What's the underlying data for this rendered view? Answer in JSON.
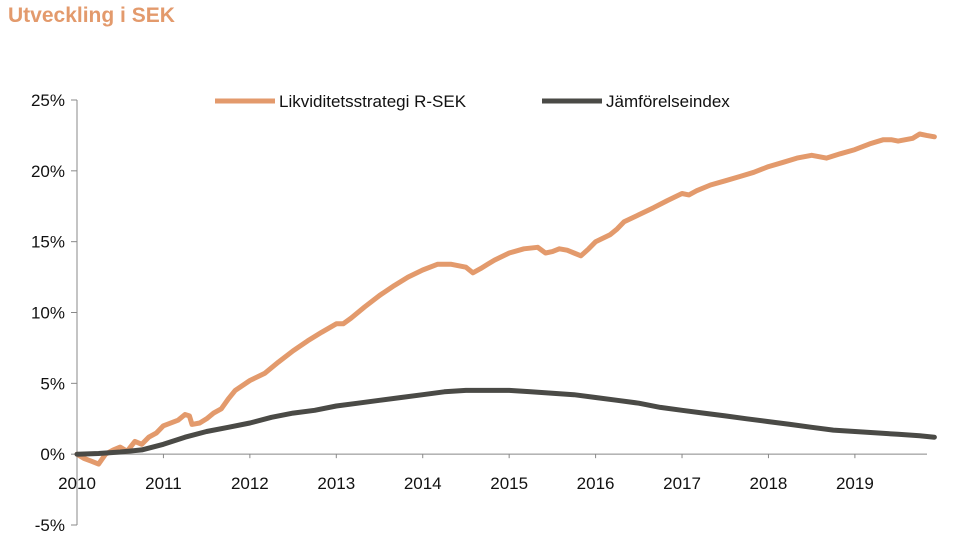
{
  "chart_data": {
    "type": "line",
    "title": "Utveckling i SEK",
    "xlabel": "",
    "ylabel": "",
    "ylim": [
      -5,
      25
    ],
    "xlim": [
      2010,
      2019.95
    ],
    "legend_position": "top-center",
    "grid": false,
    "y_ticks": [
      "-5%",
      "0%",
      "5%",
      "10%",
      "15%",
      "20%",
      "25%"
    ],
    "x_ticks": [
      "2010",
      "2011",
      "2012",
      "2013",
      "2014",
      "2015",
      "2016",
      "2017",
      "2018",
      "2019"
    ],
    "series": [
      {
        "name": "Likviditetsstrategi R-SEK",
        "color": "#E39A6C",
        "x": [
          2010.0,
          2010.08,
          2010.17,
          2010.25,
          2010.33,
          2010.42,
          2010.5,
          2010.58,
          2010.67,
          2010.75,
          2010.83,
          2010.92,
          2011.0,
          2011.17,
          2011.25,
          2011.3,
          2011.33,
          2011.42,
          2011.5,
          2011.58,
          2011.67,
          2011.75,
          2011.83,
          2012.0,
          2012.17,
          2012.33,
          2012.5,
          2012.67,
          2012.83,
          2013.0,
          2013.08,
          2013.17,
          2013.33,
          2013.5,
          2013.67,
          2013.83,
          2014.0,
          2014.17,
          2014.33,
          2014.5,
          2014.58,
          2014.67,
          2014.75,
          2014.83,
          2015.0,
          2015.17,
          2015.33,
          2015.42,
          2015.5,
          2015.58,
          2015.67,
          2015.75,
          2015.83,
          2015.92,
          2016.0,
          2016.17,
          2016.25,
          2016.33,
          2016.5,
          2016.67,
          2016.83,
          2017.0,
          2017.08,
          2017.17,
          2017.33,
          2017.5,
          2017.67,
          2017.83,
          2018.0,
          2018.17,
          2018.33,
          2018.5,
          2018.67,
          2018.83,
          2019.0,
          2019.17,
          2019.33,
          2019.42,
          2019.5,
          2019.67,
          2019.75,
          2019.83,
          2019.92
        ],
        "values": [
          0.0,
          -0.3,
          -0.5,
          -0.7,
          0.0,
          0.3,
          0.5,
          0.2,
          0.9,
          0.7,
          1.2,
          1.5,
          2.0,
          2.4,
          2.8,
          2.7,
          2.1,
          2.2,
          2.5,
          2.9,
          3.2,
          3.9,
          4.5,
          5.2,
          5.7,
          6.5,
          7.3,
          8.0,
          8.6,
          9.2,
          9.2,
          9.6,
          10.4,
          11.2,
          11.9,
          12.5,
          13.0,
          13.4,
          13.4,
          13.2,
          12.8,
          13.1,
          13.4,
          13.7,
          14.2,
          14.5,
          14.6,
          14.2,
          14.3,
          14.5,
          14.4,
          14.2,
          14.0,
          14.5,
          15.0,
          15.5,
          15.9,
          16.4,
          16.9,
          17.4,
          17.9,
          18.4,
          18.3,
          18.6,
          19.0,
          19.3,
          19.6,
          19.9,
          20.3,
          20.6,
          20.9,
          21.1,
          20.9,
          21.2,
          21.5,
          21.9,
          22.2,
          22.2,
          22.1,
          22.3,
          22.6,
          22.5,
          22.4
        ]
      },
      {
        "name": "Jämförelseindex",
        "color": "#4A4A46",
        "x": [
          2010.0,
          2010.25,
          2010.5,
          2010.75,
          2011.0,
          2011.25,
          2011.5,
          2011.75,
          2012.0,
          2012.25,
          2012.5,
          2012.75,
          2013.0,
          2013.25,
          2013.5,
          2013.75,
          2014.0,
          2014.25,
          2014.5,
          2014.75,
          2015.0,
          2015.25,
          2015.5,
          2015.75,
          2016.0,
          2016.25,
          2016.5,
          2016.75,
          2017.0,
          2017.25,
          2017.5,
          2017.75,
          2018.0,
          2018.25,
          2018.5,
          2018.75,
          2019.0,
          2019.25,
          2019.5,
          2019.75,
          2019.92
        ],
        "values": [
          0.0,
          0.05,
          0.15,
          0.3,
          0.7,
          1.2,
          1.6,
          1.9,
          2.2,
          2.6,
          2.9,
          3.1,
          3.4,
          3.6,
          3.8,
          4.0,
          4.2,
          4.4,
          4.5,
          4.5,
          4.5,
          4.4,
          4.3,
          4.2,
          4.0,
          3.8,
          3.6,
          3.3,
          3.1,
          2.9,
          2.7,
          2.5,
          2.3,
          2.1,
          1.9,
          1.7,
          1.6,
          1.5,
          1.4,
          1.3,
          1.2
        ]
      }
    ]
  }
}
